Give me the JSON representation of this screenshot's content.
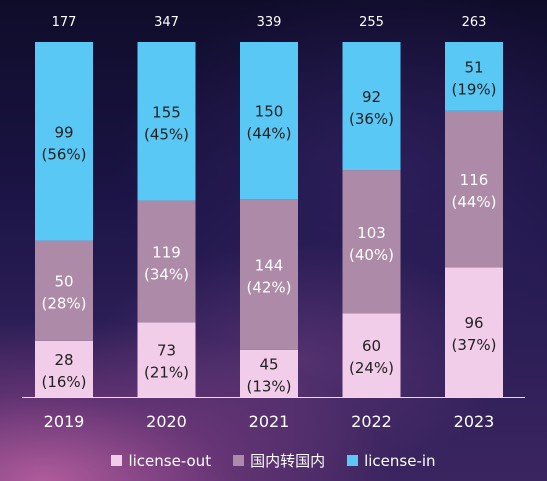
{
  "chart_data": {
    "type": "bar",
    "stacked": true,
    "categories": [
      "2019",
      "2020",
      "2021",
      "2022",
      "2023"
    ],
    "totals": [
      177,
      347,
      339,
      255,
      263
    ],
    "series": [
      {
        "name": "license-out",
        "values": [
          28,
          73,
          45,
          60,
          96
        ],
        "percents": [
          "(16%)",
          "(21%)",
          "(13%)",
          "(24%)",
          "(37%)"
        ],
        "color": "#f2cdea",
        "label_color": "#222222"
      },
      {
        "name": "国内转国内",
        "values": [
          50,
          119,
          144,
          103,
          116
        ],
        "percents": [
          "(28%)",
          "(34%)",
          "(42%)",
          "(40%)",
          "(44%)"
        ],
        "color": "#ac8aa8",
        "label_color": "#ffffff"
      },
      {
        "name": "license-in",
        "values": [
          99,
          155,
          150,
          92,
          51
        ],
        "percents": [
          "(56%)",
          "(45%)",
          "(44%)",
          "(36%)",
          "(19%)"
        ],
        "color": "#5ac8f4",
        "label_color": "#222222"
      }
    ],
    "legend_position": "bottom",
    "grid": false
  }
}
